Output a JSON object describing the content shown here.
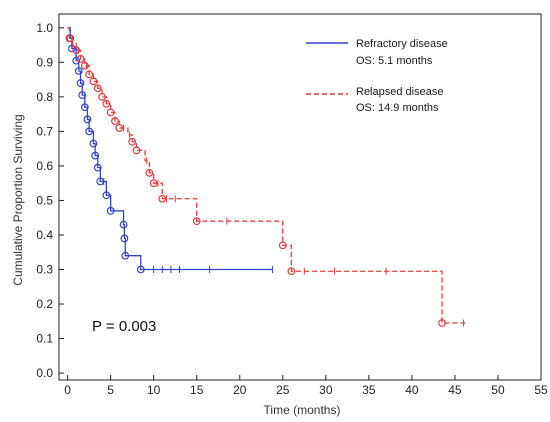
{
  "chart_data": {
    "type": "line",
    "subtype": "kaplan-meier",
    "xlabel": "Time (months)",
    "ylabel": "Cumulative Proportion Surviving",
    "xlim": [
      -1,
      55
    ],
    "ylim": [
      -0.02,
      1.04
    ],
    "xticks": [
      0,
      5,
      10,
      15,
      20,
      25,
      30,
      35,
      40,
      45,
      50,
      55
    ],
    "yticks": [
      0.0,
      0.1,
      0.2,
      0.3,
      0.4,
      0.5,
      0.6,
      0.7,
      0.8,
      0.9,
      1.0
    ],
    "grid": false,
    "annotation": "P = 0.003",
    "legend_placement": "top-right",
    "series": [
      {
        "name": "Refractory disease",
        "median_label": "OS: 5.1 months",
        "color": "#3344cc",
        "line_style": "solid",
        "steps": [
          [
            0,
            1.0
          ],
          [
            0.3,
            0.97
          ],
          [
            0.5,
            0.94
          ],
          [
            1.0,
            0.905
          ],
          [
            1.3,
            0.875
          ],
          [
            1.5,
            0.84
          ],
          [
            1.7,
            0.805
          ],
          [
            2.0,
            0.77
          ],
          [
            2.3,
            0.735
          ],
          [
            2.5,
            0.7
          ],
          [
            3.0,
            0.665
          ],
          [
            3.2,
            0.63
          ],
          [
            3.5,
            0.595
          ],
          [
            3.8,
            0.555
          ],
          [
            4.5,
            0.515
          ],
          [
            5.0,
            0.47
          ],
          [
            6.5,
            0.43
          ],
          [
            6.6,
            0.39
          ],
          [
            6.7,
            0.34
          ],
          [
            8.5,
            0.3
          ]
        ],
        "end_x": 23.8,
        "events": [
          [
            0.3,
            0.97
          ],
          [
            0.5,
            0.94
          ],
          [
            1.0,
            0.905
          ],
          [
            1.3,
            0.875
          ],
          [
            1.5,
            0.84
          ],
          [
            1.7,
            0.805
          ],
          [
            2.0,
            0.77
          ],
          [
            2.3,
            0.735
          ],
          [
            2.5,
            0.7
          ],
          [
            3.0,
            0.665
          ],
          [
            3.2,
            0.63
          ],
          [
            3.5,
            0.595
          ],
          [
            3.8,
            0.555
          ],
          [
            4.5,
            0.515
          ],
          [
            5.0,
            0.47
          ],
          [
            6.5,
            0.43
          ],
          [
            6.6,
            0.39
          ],
          [
            6.7,
            0.34
          ],
          [
            8.5,
            0.3
          ]
        ],
        "censored": [
          [
            4.2,
            0.555
          ],
          [
            10.0,
            0.3
          ],
          [
            11.0,
            0.3
          ],
          [
            12.0,
            0.3
          ],
          [
            13.0,
            0.3
          ],
          [
            16.5,
            0.3
          ],
          [
            23.8,
            0.3
          ]
        ]
      },
      {
        "name": "Relapsed disease",
        "median_label": "OS: 14.9 months",
        "color": "#e8393a",
        "line_style": "dashed",
        "steps": [
          [
            0,
            1.0
          ],
          [
            0.2,
            0.97
          ],
          [
            0.5,
            0.955
          ],
          [
            1.0,
            0.935
          ],
          [
            1.5,
            0.91
          ],
          [
            2.0,
            0.89
          ],
          [
            2.5,
            0.865
          ],
          [
            3.0,
            0.845
          ],
          [
            3.5,
            0.825
          ],
          [
            4.0,
            0.8
          ],
          [
            4.5,
            0.78
          ],
          [
            5.0,
            0.755
          ],
          [
            5.5,
            0.73
          ],
          [
            6.0,
            0.71
          ],
          [
            7.0,
            0.69
          ],
          [
            7.5,
            0.67
          ],
          [
            8.0,
            0.645
          ],
          [
            9.0,
            0.615
          ],
          [
            9.5,
            0.58
          ],
          [
            10.0,
            0.55
          ],
          [
            11.0,
            0.505
          ],
          [
            15.0,
            0.44
          ],
          [
            25.0,
            0.37
          ],
          [
            26.0,
            0.295
          ],
          [
            43.5,
            0.145
          ]
        ],
        "end_x": 46.2,
        "events": [
          [
            0.2,
            0.97
          ],
          [
            1.0,
            0.935
          ],
          [
            1.5,
            0.91
          ],
          [
            2.0,
            0.89
          ],
          [
            2.5,
            0.865
          ],
          [
            3.0,
            0.845
          ],
          [
            3.5,
            0.825
          ],
          [
            4.0,
            0.8
          ],
          [
            4.5,
            0.78
          ],
          [
            5.0,
            0.755
          ],
          [
            5.5,
            0.73
          ],
          [
            6.0,
            0.71
          ],
          [
            7.5,
            0.67
          ],
          [
            8.0,
            0.645
          ],
          [
            9.5,
            0.58
          ],
          [
            10.0,
            0.55
          ],
          [
            11.0,
            0.505
          ],
          [
            15.0,
            0.44
          ],
          [
            25.0,
            0.37
          ],
          [
            26.0,
            0.295
          ],
          [
            43.5,
            0.145
          ]
        ],
        "censored": [
          [
            0.6,
            0.955
          ],
          [
            1.2,
            0.935
          ],
          [
            2.2,
            0.89
          ],
          [
            6.5,
            0.71
          ],
          [
            7.2,
            0.69
          ],
          [
            9.2,
            0.615
          ],
          [
            10.5,
            0.55
          ],
          [
            11.5,
            0.505
          ],
          [
            12.5,
            0.505
          ],
          [
            18.5,
            0.44
          ],
          [
            27.5,
            0.295
          ],
          [
            31.0,
            0.295
          ],
          [
            37.0,
            0.295
          ],
          [
            46.0,
            0.145
          ]
        ]
      }
    ]
  }
}
